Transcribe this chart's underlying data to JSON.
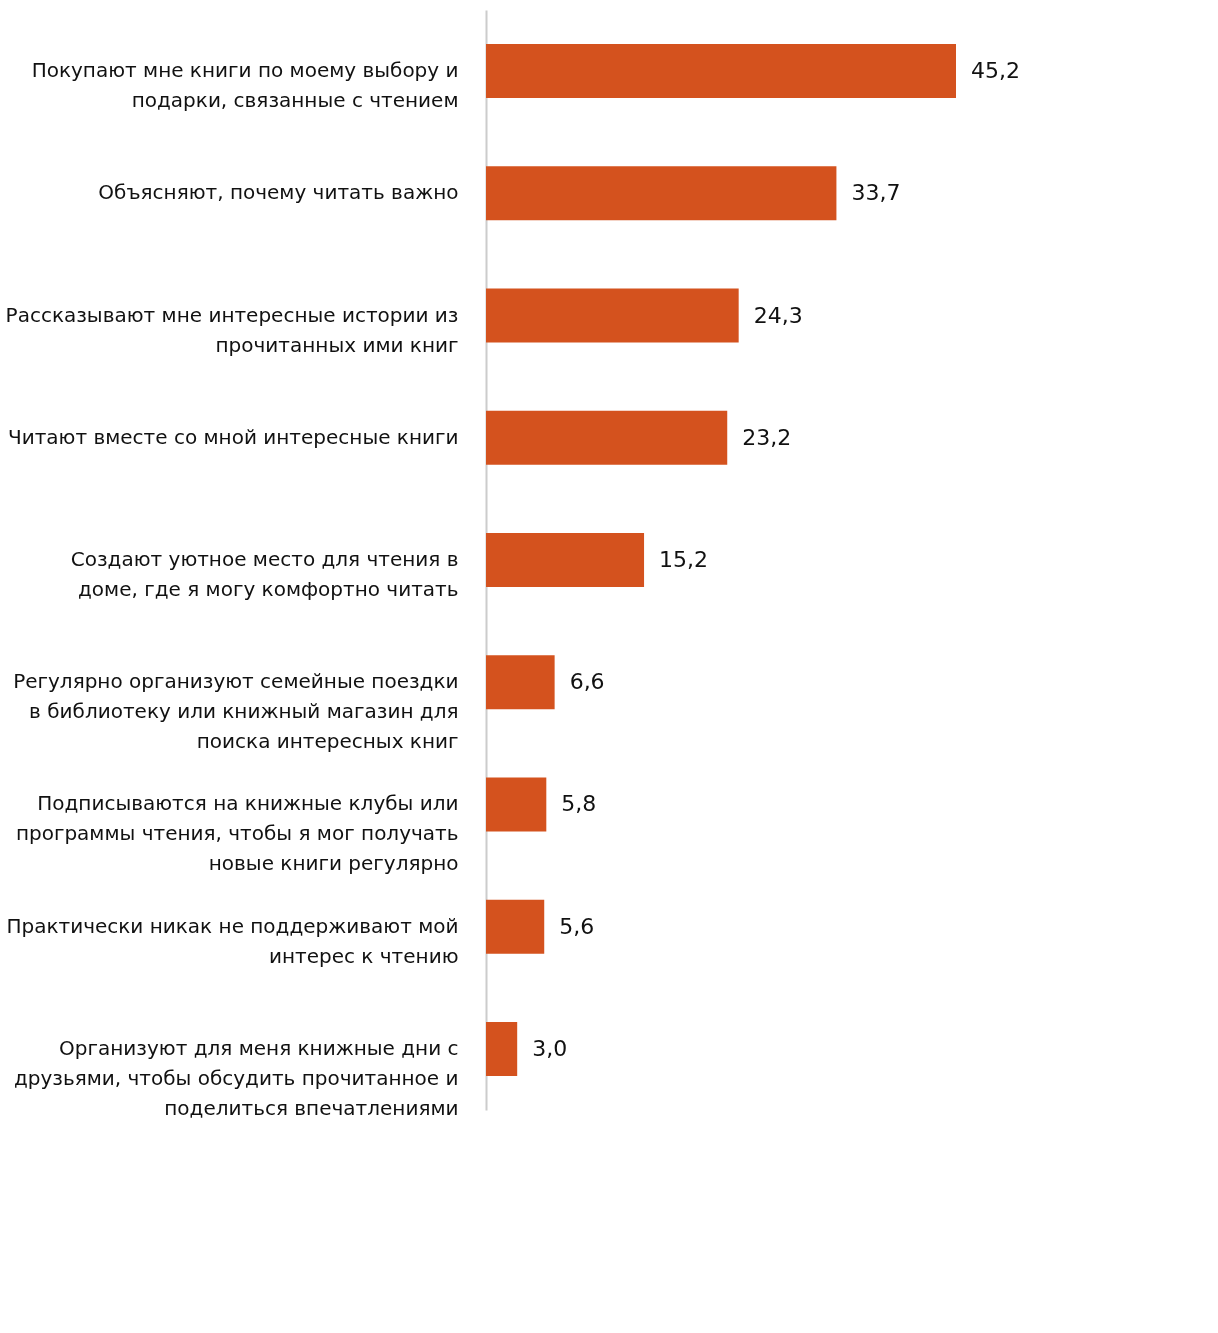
{
  "chart_data": {
    "type": "bar",
    "orientation": "horizontal",
    "categories": [
      "Покупают мне книги по моему выбору и подарки, связанные с чтением",
      "Объясняют, почему читать важно",
      "Рассказывают мне интересные истории из прочитанных ими книг",
      "Читают вместе со мной интересные книги",
      "Создают уютное место для чтения в доме, где я могу комфортно читать",
      "Регулярно организуют семейные поездки в библиотеку или книжный магазин для поиска интересных книг",
      "Подписываются на книжные клубы или программы чтения, чтобы я мог получать новые книги регулярно",
      "Практически никак не поддерживают мой интерес к чтению",
      "Организуют для меня книжные дни с друзьями, чтобы обсудить прочитанное и поделиться впечатлениями"
    ],
    "values": [
      45.2,
      33.7,
      24.3,
      23.2,
      15.2,
      6.6,
      5.8,
      5.6,
      3.0
    ],
    "value_labels": [
      "45,2",
      "33,7",
      "24,3",
      "23,2",
      "15,2",
      "6,6",
      "5,8",
      "5,6",
      "3,0"
    ],
    "color": "#d4521e",
    "tick_labels": "y"
  }
}
